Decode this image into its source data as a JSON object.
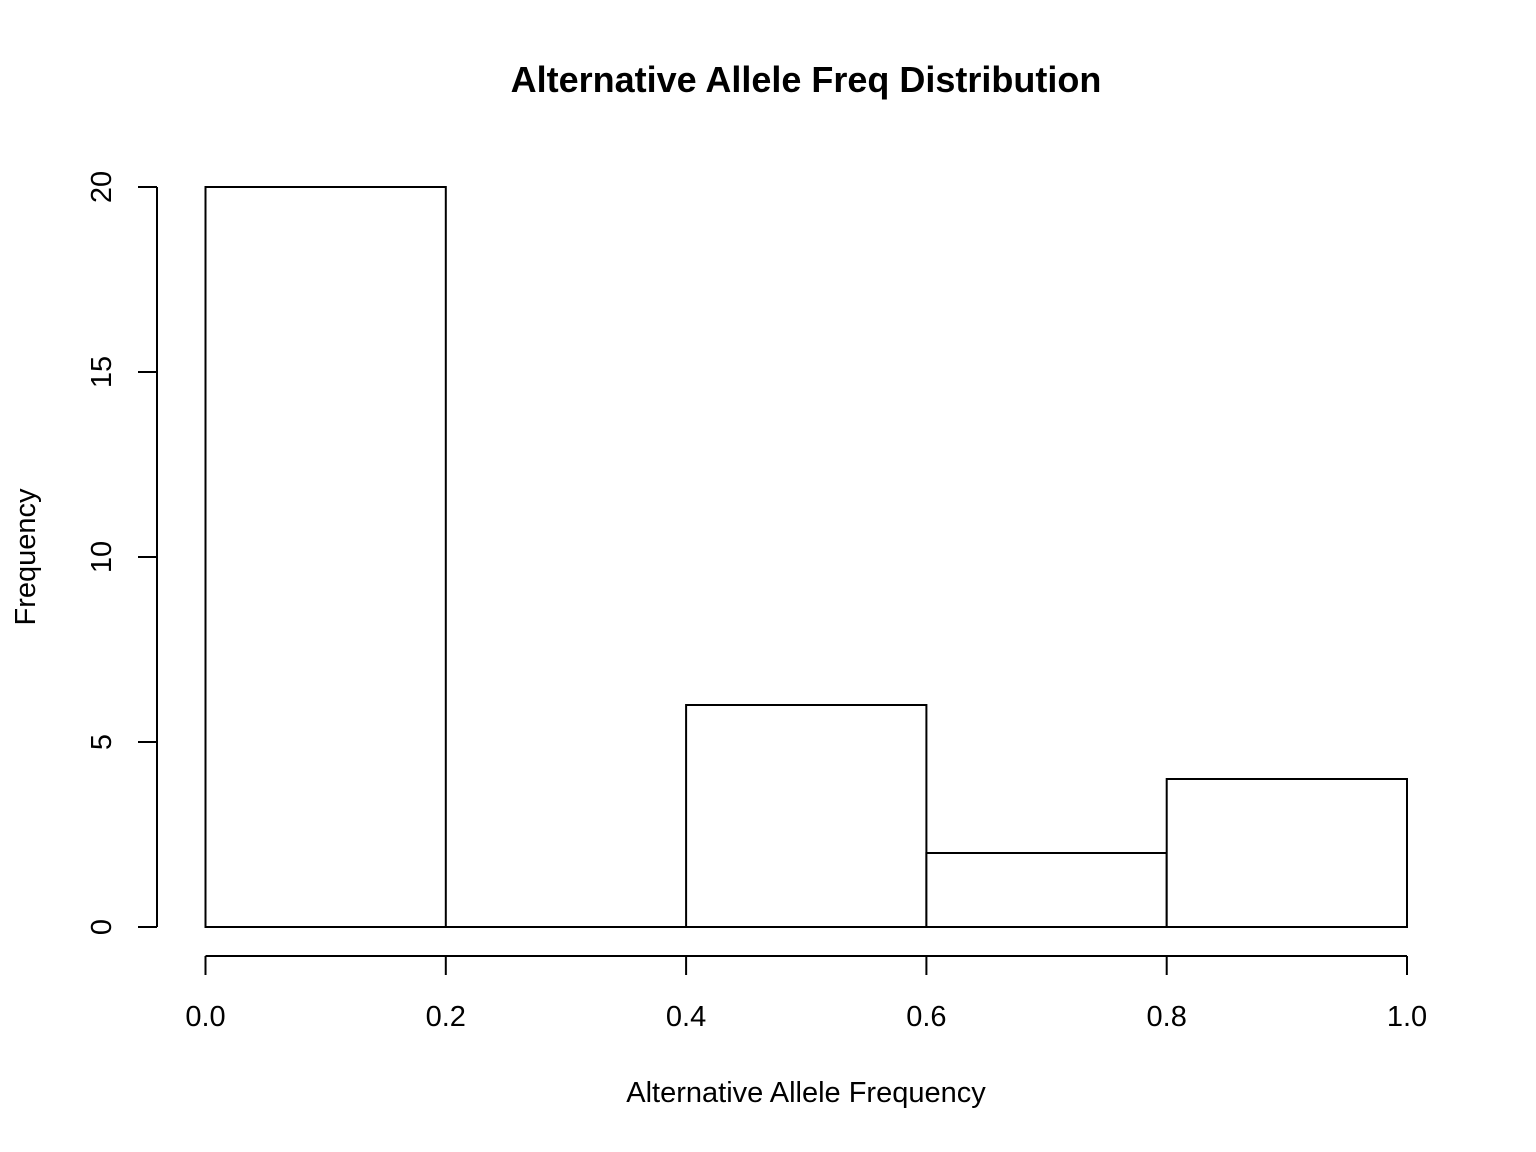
{
  "chart_data": {
    "type": "bar",
    "title": "Alternative Allele Freq Distribution",
    "xlabel": "Alternative Allele Frequency",
    "ylabel": "Frequency",
    "bins": [
      {
        "start": 0.0,
        "end": 0.2,
        "count": 20
      },
      {
        "start": 0.2,
        "end": 0.4,
        "count": 0
      },
      {
        "start": 0.4,
        "end": 0.6,
        "count": 6
      },
      {
        "start": 0.6,
        "end": 0.8,
        "count": 2
      },
      {
        "start": 0.8,
        "end": 1.0,
        "count": 4
      }
    ],
    "xlim": [
      0.0,
      1.0
    ],
    "ylim": [
      0,
      20
    ],
    "x_ticks": [
      "0.0",
      "0.2",
      "0.4",
      "0.6",
      "0.8",
      "1.0"
    ],
    "y_ticks": [
      "0",
      "5",
      "10",
      "15",
      "20"
    ],
    "grid": false,
    "legend": "none",
    "bar_fill": "#ffffff",
    "bar_stroke": "#000000"
  }
}
